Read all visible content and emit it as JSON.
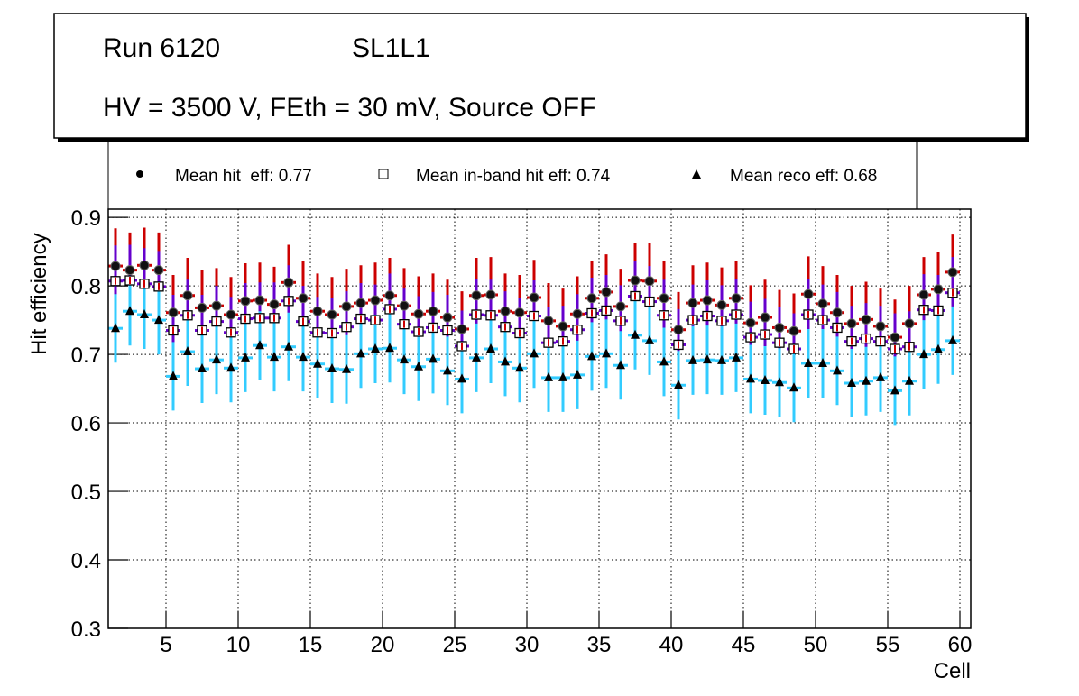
{
  "chart_data": {
    "type": "scatter",
    "title_box": {
      "run": "Run 6120",
      "layer": "SL1L1",
      "conditions": "HV = 3500 V, FEth = 30 mV, Source OFF"
    },
    "xlabel": "Cell",
    "ylabel": "Hit efficiency",
    "xlim": [
      1,
      60.75
    ],
    "ylim": [
      0.3,
      0.912
    ],
    "xticks": [
      5,
      10,
      15,
      20,
      25,
      30,
      35,
      40,
      45,
      50,
      55,
      60
    ],
    "yticks": [
      "0.3",
      "0.4",
      "0.5",
      "0.6",
      "0.7",
      "0.8",
      "0.9"
    ],
    "grid": true,
    "legend_placement": "top",
    "x_offset": 0.5,
    "x_start": 1,
    "series": [
      {
        "name": "Mean hit  eff: 0.77",
        "marker": "circle",
        "color": "#cc0000",
        "error": 0.055,
        "values": [
          0.829,
          0.823,
          0.83,
          0.823,
          0.761,
          0.786,
          0.768,
          0.771,
          0.758,
          0.778,
          0.779,
          0.773,
          0.805,
          0.782,
          0.763,
          0.758,
          0.77,
          0.775,
          0.779,
          0.786,
          0.771,
          0.759,
          0.763,
          0.754,
          0.737,
          0.786,
          0.787,
          0.763,
          0.761,
          0.783,
          0.749,
          0.741,
          0.759,
          0.782,
          0.791,
          0.77,
          0.808,
          0.807,
          0.782,
          0.736,
          0.775,
          0.779,
          0.772,
          0.782,
          0.746,
          0.754,
          0.739,
          0.734,
          0.788,
          0.774,
          0.761,
          0.745,
          0.751,
          0.741,
          0.725,
          0.745,
          0.787,
          0.795,
          0.82
        ]
      },
      {
        "name": "Mean in-band hit eff: 0.74",
        "marker": "open-square",
        "color": "#6600cc",
        "error": 0.052,
        "values": [
          0.807,
          0.808,
          0.803,
          0.799,
          0.735,
          0.757,
          0.735,
          0.748,
          0.732,
          0.752,
          0.753,
          0.753,
          0.778,
          0.748,
          0.732,
          0.731,
          0.74,
          0.752,
          0.75,
          0.766,
          0.744,
          0.733,
          0.739,
          0.735,
          0.712,
          0.758,
          0.757,
          0.74,
          0.731,
          0.756,
          0.717,
          0.719,
          0.736,
          0.76,
          0.764,
          0.749,
          0.785,
          0.777,
          0.757,
          0.714,
          0.75,
          0.756,
          0.749,
          0.758,
          0.725,
          0.729,
          0.717,
          0.708,
          0.758,
          0.75,
          0.739,
          0.719,
          0.723,
          0.719,
          0.708,
          0.711,
          0.765,
          0.764,
          0.79
        ]
      },
      {
        "name": "Mean reco eff: 0.68",
        "marker": "triangle",
        "color": "#33ccff",
        "error": 0.05,
        "values": [
          0.738,
          0.763,
          0.758,
          0.75,
          0.668,
          0.704,
          0.679,
          0.692,
          0.68,
          0.695,
          0.713,
          0.696,
          0.711,
          0.696,
          0.686,
          0.679,
          0.678,
          0.701,
          0.708,
          0.709,
          0.692,
          0.682,
          0.693,
          0.676,
          0.664,
          0.695,
          0.708,
          0.689,
          0.68,
          0.701,
          0.666,
          0.666,
          0.67,
          0.697,
          0.701,
          0.684,
          0.728,
          0.72,
          0.689,
          0.655,
          0.691,
          0.692,
          0.691,
          0.695,
          0.664,
          0.662,
          0.659,
          0.651,
          0.687,
          0.687,
          0.676,
          0.658,
          0.661,
          0.666,
          0.647,
          0.661,
          0.7,
          0.707,
          0.72
        ]
      }
    ]
  }
}
